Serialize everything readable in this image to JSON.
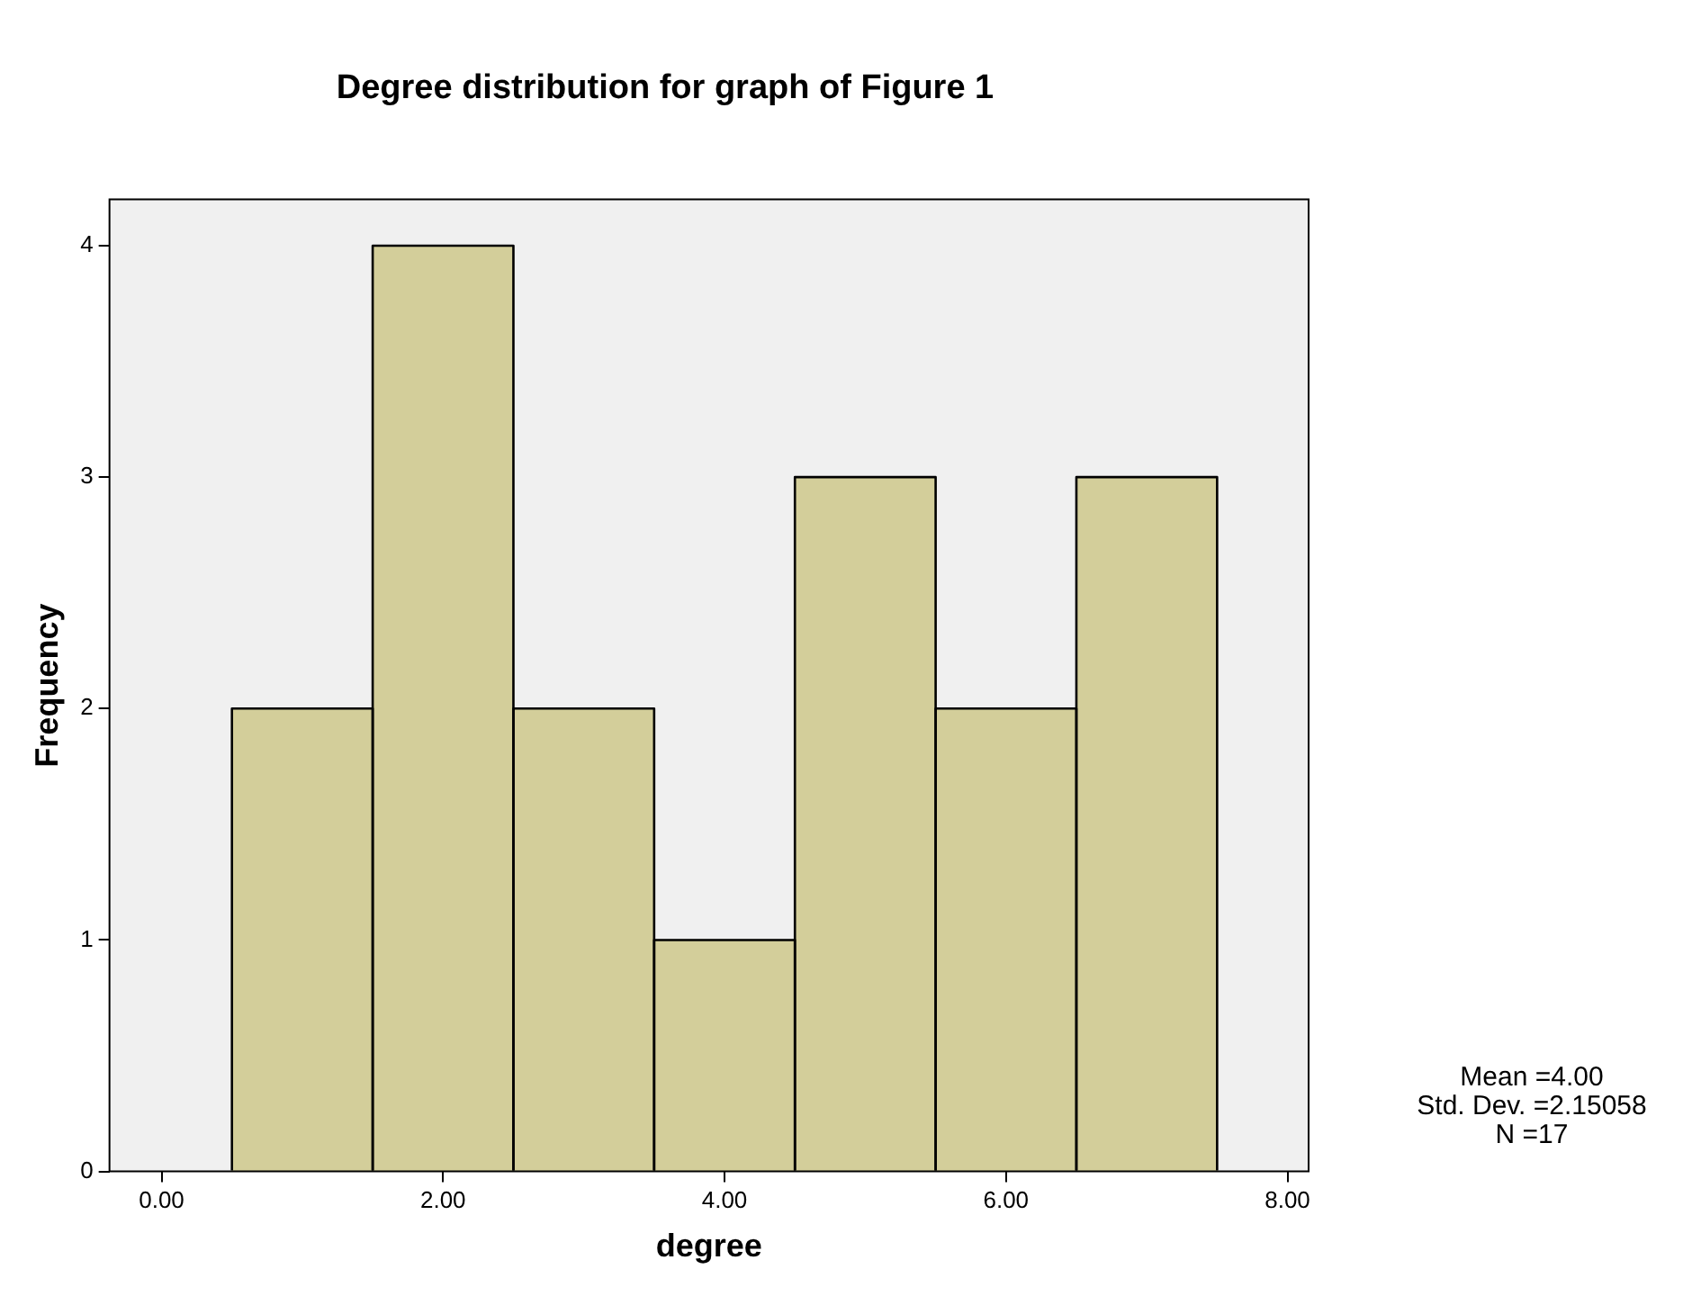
{
  "chart_data": {
    "type": "histogram",
    "title": "Degree distribution for graph of Figure 1",
    "xlabel": "degree",
    "ylabel": "Frequency",
    "bins": [
      0.5,
      1.5,
      2.5,
      3.5,
      4.5,
      5.5,
      6.5,
      7.5
    ],
    "values": [
      2,
      4,
      2,
      1,
      3,
      2,
      3
    ],
    "color": "#d3ce9a",
    "xlim": [
      -0.37,
      8.15
    ],
    "xticks": [
      {
        "value": 0,
        "label": "0.00"
      },
      {
        "value": 2,
        "label": "2.00"
      },
      {
        "value": 4,
        "label": "4.00"
      },
      {
        "value": 6,
        "label": "6.00"
      },
      {
        "value": 8,
        "label": "8.00"
      }
    ],
    "ylim": [
      0,
      4.2
    ],
    "yticks": [
      0,
      1,
      2,
      3,
      4
    ],
    "grid": false,
    "legend": false,
    "annotations": [
      "Mean =4.00",
      "Std. Dev. =2.15058",
      "N =17"
    ]
  }
}
